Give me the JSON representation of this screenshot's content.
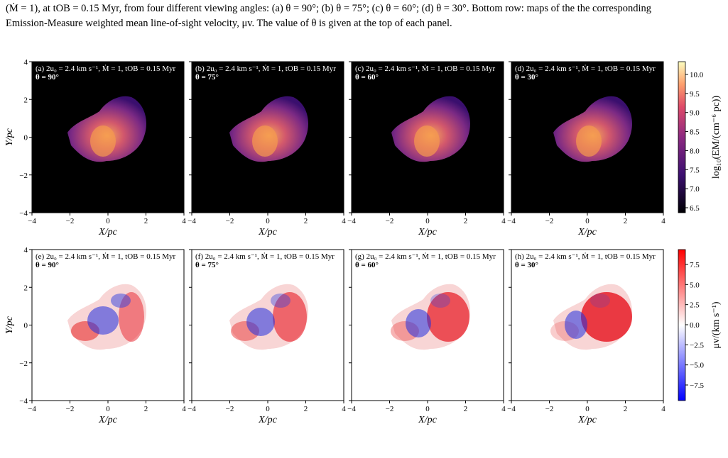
{
  "caption": [
    "(Ṁ = 1), at tOB = 0.15 Myr, from four different viewing angles: (a) θ = 90°; (b) θ = 75°; (c) θ = 60°; (d) θ = 30°.  Bottom row: maps of the the corresponding",
    "Emission-Measure weighted mean line-of-sight velocity, μv. The value of θ is given at the top of each panel."
  ],
  "panels": [
    {
      "label": "(a) 2u₀ = 2.4 km s⁻¹, Ṁ = 1, tOB = 0.15 Myr",
      "angle": "θ = 90°"
    },
    {
      "label": "(b) 2u₀ = 2.4 km s⁻¹, Ṁ = 1, tOB = 0.15 Myr",
      "angle": "θ = 75°"
    },
    {
      "label": "(c) 2u₀ = 2.4 km s⁻¹, Ṁ = 1, tOB = 0.15 Myr",
      "angle": "θ = 60°"
    },
    {
      "label": "(d) 2u₀ = 2.4 km s⁻¹, Ṁ = 1, tOB = 0.15 Myr",
      "angle": "θ = 30°"
    },
    {
      "label": "(e) 2u₀ = 2.4 km s⁻¹, Ṁ = 1, tOB = 0.15 Myr",
      "angle": "θ = 90°"
    },
    {
      "label": "(f) 2u₀ = 2.4 km s⁻¹, Ṁ = 1, tOB = 0.15 Myr",
      "angle": "θ = 75°"
    },
    {
      "label": "(g) 2u₀ = 2.4 km s⁻¹, Ṁ = 1, tOB = 0.15 Myr",
      "angle": "θ = 60°"
    },
    {
      "label": "(h) 2u₀ = 2.4 km s⁻¹, Ṁ = 1, tOB = 0.15 Myr",
      "angle": "θ = 30°"
    }
  ],
  "x_axis_label": "X/pc",
  "y_axis_label": "Y/pc",
  "axis_ticks": [
    "−4",
    "−2",
    "0",
    "2",
    "4"
  ],
  "colorbars": [
    {
      "label": "log₁₀(EM/(cm⁻⁶ pc))",
      "ticks": [
        "6.5",
        "7.0",
        "7.5",
        "8.0",
        "8.5",
        "9.0",
        "9.5",
        "10.0"
      ]
    },
    {
      "label": "μv/(km s⁻¹)",
      "ticks": [
        "−7.5",
        "−5.0",
        "−2.5",
        "0.0",
        "2.5",
        "5.0",
        "7.5"
      ]
    }
  ]
}
